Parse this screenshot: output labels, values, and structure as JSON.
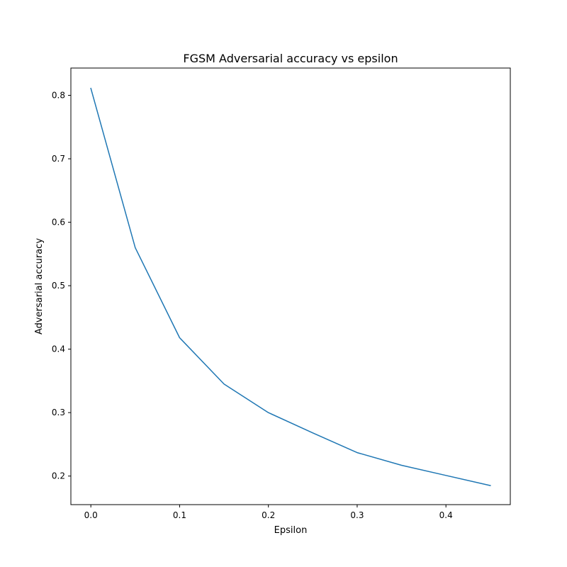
{
  "chart_data": {
    "type": "line",
    "title": "FGSM Adversarial accuracy vs epsilon",
    "xlabel": "Epsilon",
    "ylabel": "Adversarial accuracy",
    "xlim": [
      -0.0225,
      0.4725
    ],
    "ylim": [
      0.155,
      0.843
    ],
    "x_ticks": [
      0.0,
      0.1,
      0.2,
      0.3,
      0.4
    ],
    "x_tick_labels": [
      "0.0",
      "0.1",
      "0.2",
      "0.3",
      "0.4"
    ],
    "y_ticks": [
      0.2,
      0.3,
      0.4,
      0.5,
      0.6,
      0.7,
      0.8
    ],
    "y_tick_labels": [
      "0.2",
      "0.3",
      "0.4",
      "0.5",
      "0.6",
      "0.7",
      "0.8"
    ],
    "grid": false,
    "series": [
      {
        "color": "#1f77b4",
        "x": [
          0.0,
          0.05,
          0.1,
          0.15,
          0.2,
          0.25,
          0.3,
          0.35,
          0.4,
          0.45
        ],
        "y": [
          0.811,
          0.56,
          0.418,
          0.345,
          0.3,
          0.268,
          0.237,
          0.217,
          0.201,
          0.185
        ]
      }
    ]
  }
}
